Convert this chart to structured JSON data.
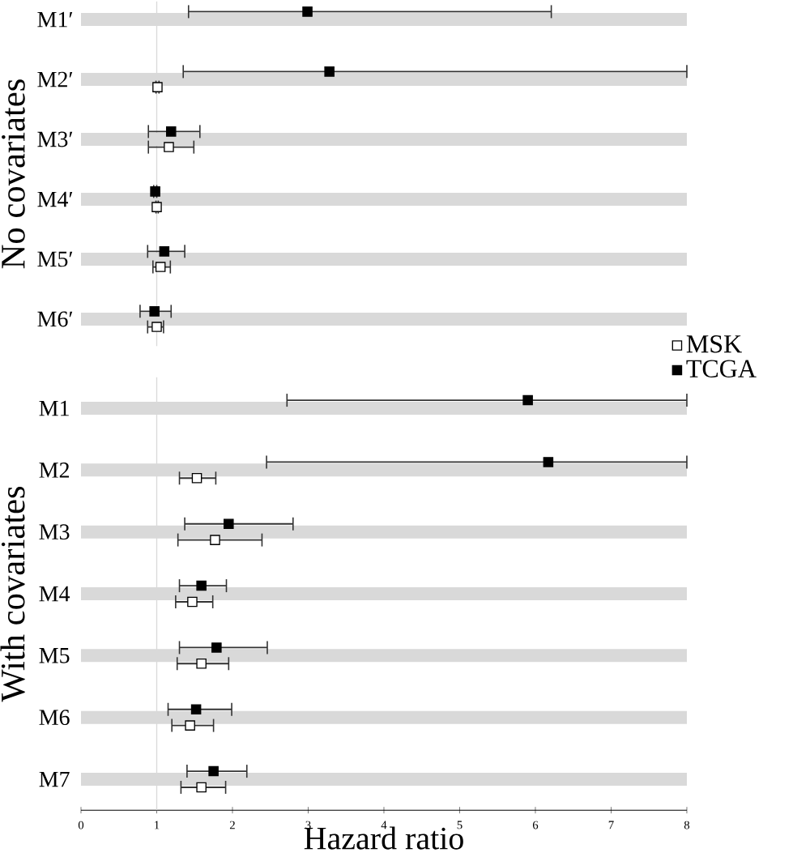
{
  "chart_data": [
    {
      "type": "scatter",
      "orientation": "horizontal",
      "ylabel": "No covariates",
      "categories": [
        "M1′",
        "M2′",
        "M3′",
        "M4′",
        "M5′",
        "M6′"
      ],
      "xlim": [
        0,
        8
      ],
      "tick_labels": "y",
      "grid": "y",
      "marker": "square",
      "ref_lines": [
        {
          "axis": "x",
          "value": 1,
          "color": "#d9d9d9"
        }
      ],
      "series": [
        {
          "color": "#ffffff",
          "values": [
            null,
            1.01,
            1.16,
            1.0,
            1.05,
            1.0
          ],
          "errors": [
            null,
            [
              0.99,
              1.03
            ],
            [
              0.89,
              1.49
            ],
            [
              0.99,
              1.02
            ],
            [
              0.95,
              1.18
            ],
            [
              0.88,
              1.09
            ]
          ]
        },
        {
          "color": "#000000",
          "values": [
            2.99,
            3.28,
            1.19,
            0.98,
            1.1,
            0.97
          ],
          "errors": [
            [
              1.42,
              6.21
            ],
            [
              1.35,
              8
            ],
            [
              0.89,
              1.57
            ],
            [
              0.96,
              1.0
            ],
            [
              0.88,
              1.37
            ],
            [
              0.78,
              1.19
            ]
          ]
        }
      ]
    },
    {
      "type": "scatter",
      "orientation": "horizontal",
      "ylabel": "With covariates",
      "xlabel": "Hazard ratio",
      "categories": [
        "M1",
        "M2",
        "M3",
        "M4",
        "M5",
        "M6",
        "M7"
      ],
      "xlim": [
        0,
        8
      ],
      "xticks": [
        0,
        1,
        2,
        3,
        4,
        5,
        6,
        7,
        8
      ],
      "grid": "y",
      "marker": "square",
      "legend": "right",
      "ref_lines": [
        {
          "axis": "x",
          "value": 1,
          "color": "#d9d9d9"
        }
      ],
      "series": [
        {
          "name": "MSK",
          "color": "#ffffff",
          "values": [
            null,
            1.53,
            1.77,
            1.47,
            1.59,
            1.44,
            1.59
          ],
          "errors": [
            null,
            [
              1.3,
              1.78
            ],
            [
              1.28,
              2.39
            ],
            [
              1.25,
              1.74
            ],
            [
              1.27,
              1.95
            ],
            [
              1.2,
              1.75
            ],
            [
              1.32,
              1.91
            ]
          ]
        },
        {
          "name": "TCGA",
          "color": "#000000",
          "values": [
            5.9,
            6.17,
            1.95,
            1.59,
            1.79,
            1.52,
            1.75
          ],
          "errors": [
            [
              2.72,
              8
            ],
            [
              2.45,
              8
            ],
            [
              1.37,
              2.8
            ],
            [
              1.3,
              1.92
            ],
            [
              1.3,
              2.46
            ],
            [
              1.15,
              1.99
            ],
            [
              1.4,
              2.19
            ]
          ]
        }
      ]
    }
  ]
}
